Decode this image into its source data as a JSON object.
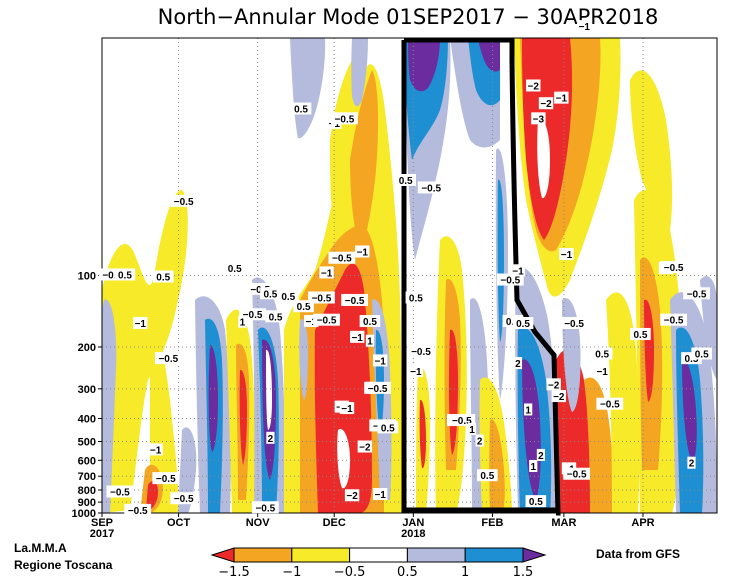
{
  "title": "North−Annular Mode 01SEP2017 − 30APR2018",
  "footer": {
    "left_line1": "La.M.M.A",
    "left_line2": "Regione Toscana",
    "right": "Data from GFS"
  },
  "chart_data": {
    "type": "heatmap",
    "x_axis": {
      "start": "2017-09-01",
      "end": "2018-04-30",
      "ticks": [
        {
          "date": "2017-09-01",
          "label": "SEP",
          "sub": "2017"
        },
        {
          "date": "2017-10-01",
          "label": "OCT",
          "sub": ""
        },
        {
          "date": "2017-11-01",
          "label": "NOV",
          "sub": ""
        },
        {
          "date": "2017-12-01",
          "label": "DEC",
          "sub": ""
        },
        {
          "date": "2018-01-01",
          "label": "JAN",
          "sub": "2018"
        },
        {
          "date": "2018-02-01",
          "label": "FEB",
          "sub": ""
        },
        {
          "date": "2018-03-01",
          "label": "MAR",
          "sub": ""
        },
        {
          "date": "2018-04-01",
          "label": "APR",
          "sub": ""
        }
      ]
    },
    "y_axis": {
      "scale": "log",
      "inverted": true,
      "range": [
        1000,
        10
      ],
      "tick_labels": [
        "100",
        "200",
        "300",
        "400",
        "500",
        "600",
        "700",
        "800",
        "900",
        "1000"
      ],
      "tick_values": [
        100,
        200,
        300,
        400,
        500,
        600,
        700,
        800,
        900,
        1000
      ]
    },
    "grid": "dotted",
    "colorbar": {
      "labels": [
        "−1.5",
        "−1",
        "−0.5",
        "0.5",
        "1",
        "1.5"
      ],
      "colors": [
        "#ec2a2a",
        "#f4a623",
        "#f6ea29",
        "#ffffff",
        "#b4bbdd",
        "#1e8fd2",
        "#6a2c9e"
      ]
    },
    "highlight_box_dates": [
      "2017-12-28",
      "2018-03-05"
    ],
    "contour_labels": [
      {
        "t": "2017-09-05",
        "p": 100,
        "text": "−0.5"
      },
      {
        "t": "2017-09-10",
        "p": 100,
        "text": "0.5"
      },
      {
        "t": "2017-09-25",
        "p": 102,
        "text": "0.5"
      },
      {
        "t": "2017-10-03",
        "p": 49,
        "text": "−0.5"
      },
      {
        "t": "2017-09-16",
        "p": 160,
        "text": "−1"
      },
      {
        "t": "2017-09-27",
        "p": 225,
        "text": "−0.5"
      },
      {
        "t": "2017-09-22",
        "p": 545,
        "text": "−1"
      },
      {
        "t": "2017-09-26",
        "p": 720,
        "text": "−0.5"
      },
      {
        "t": "2017-09-08",
        "p": 820,
        "text": "−0.5"
      },
      {
        "t": "2017-09-15",
        "p": 980,
        "text": "−0.5"
      },
      {
        "t": "2017-10-03",
        "p": 875,
        "text": "−0.5"
      },
      {
        "t": "2017-10-23",
        "p": 94,
        "text": "0.5"
      },
      {
        "t": "2017-11-02",
        "p": 115,
        "text": "−0.5"
      },
      {
        "t": "2017-11-06",
        "p": 120,
        "text": "0.5"
      },
      {
        "t": "2017-10-30",
        "p": 147,
        "text": "−0.5"
      },
      {
        "t": "2017-11-08",
        "p": 150,
        "text": "0.5"
      },
      {
        "t": "2017-10-26",
        "p": 158,
        "text": "1"
      },
      {
        "t": "2017-11-13",
        "p": 123,
        "text": "0.5"
      },
      {
        "t": "2017-11-19",
        "p": 136,
        "text": "0.5"
      },
      {
        "t": "2017-11-22",
        "p": 157,
        "text": "−1"
      },
      {
        "t": "2017-11-26",
        "p": 125,
        "text": "−0.5"
      },
      {
        "t": "2017-11-28",
        "p": 98,
        "text": "−1"
      },
      {
        "t": "2017-11-28",
        "p": 155,
        "text": "−0.5"
      },
      {
        "t": "2017-11-06",
        "p": 487,
        "text": "2"
      },
      {
        "t": "2017-11-04",
        "p": 955,
        "text": "−0.5"
      },
      {
        "t": "2017-11-18",
        "p": 20,
        "text": "0.5"
      },
      {
        "t": "2017-12-01",
        "p": 23,
        "text": "−1"
      },
      {
        "t": "2017-12-05",
        "p": 22,
        "text": "−0.5"
      },
      {
        "t": "2017-12-04",
        "p": 85,
        "text": "−0.5"
      },
      {
        "t": "2017-12-12",
        "p": 80,
        "text": "−1"
      },
      {
        "t": "2017-12-09",
        "p": 128,
        "text": "−0.5"
      },
      {
        "t": "2017-12-10",
        "p": 183,
        "text": "−1"
      },
      {
        "t": "2017-12-15",
        "p": 157,
        "text": "0.5"
      },
      {
        "t": "2017-12-15",
        "p": 190,
        "text": "1"
      },
      {
        "t": "2017-12-04",
        "p": 360,
        "text": "−2"
      },
      {
        "t": "2017-12-06",
        "p": 365,
        "text": "−1"
      },
      {
        "t": "2017-12-13",
        "p": 530,
        "text": "−2"
      },
      {
        "t": "2017-12-15",
        "p": 300,
        "text": "2"
      },
      {
        "t": "2017-12-18",
        "p": 300,
        "text": "−0.5"
      },
      {
        "t": "2017-12-19",
        "p": 230,
        "text": "−1"
      },
      {
        "t": "2017-12-20",
        "p": 432,
        "text": "−0.5"
      },
      {
        "t": "2017-12-22",
        "p": 440,
        "text": "0.5"
      },
      {
        "t": "2017-12-08",
        "p": 850,
        "text": "−2"
      },
      {
        "t": "2017-12-19",
        "p": 840,
        "text": "−1"
      },
      {
        "t": "2017-12-29",
        "p": 40,
        "text": "0.5"
      },
      {
        "t": "2018-01-08",
        "p": 43,
        "text": "−0.5"
      },
      {
        "t": "2018-01-02",
        "p": 125,
        "text": "0.5"
      },
      {
        "t": "2018-01-04",
        "p": 210,
        "text": "−0.5"
      },
      {
        "t": "2018-01-02",
        "p": 255,
        "text": "−1"
      },
      {
        "t": "2018-01-17",
        "p": 410,
        "text": "−1"
      },
      {
        "t": "2018-01-20",
        "p": 410,
        "text": "−0.5"
      },
      {
        "t": "2018-01-24",
        "p": 447,
        "text": "1"
      },
      {
        "t": "2018-01-27",
        "p": 500,
        "text": "2"
      },
      {
        "t": "2018-01-30",
        "p": 700,
        "text": "0.5"
      },
      {
        "t": "2018-02-08",
        "p": 105,
        "text": "−0.5"
      },
      {
        "t": "2018-02-11",
        "p": 96,
        "text": "−1"
      },
      {
        "t": "2018-02-09",
        "p": 157,
        "text": "0.5"
      },
      {
        "t": "2018-02-13",
        "p": 160,
        "text": "0.5"
      },
      {
        "t": "2018-02-11",
        "p": 236,
        "text": "2"
      },
      {
        "t": "2018-02-15",
        "p": 370,
        "text": "1"
      },
      {
        "t": "2018-02-17",
        "p": 640,
        "text": "1"
      },
      {
        "t": "2018-02-20",
        "p": 575,
        "text": "2"
      },
      {
        "t": "2018-02-18",
        "p": 900,
        "text": "0.5"
      },
      {
        "t": "2018-02-17",
        "p": 16,
        "text": "−2"
      },
      {
        "t": "2018-02-22",
        "p": 19,
        "text": "−2"
      },
      {
        "t": "2018-02-19",
        "p": 22,
        "text": "−3"
      },
      {
        "t": "2018-02-28",
        "p": 18,
        "text": "−1"
      },
      {
        "t": "2018-03-09",
        "p": 9,
        "text": "−1"
      },
      {
        "t": "2018-03-02",
        "p": 82,
        "text": "−1"
      },
      {
        "t": "2018-03-05",
        "p": 160,
        "text": "−0.5"
      },
      {
        "t": "2018-03-16",
        "p": 255,
        "text": "−1"
      },
      {
        "t": "2018-02-25",
        "p": 290,
        "text": "−2"
      },
      {
        "t": "2018-02-27",
        "p": 325,
        "text": "−2"
      },
      {
        "t": "2018-03-19",
        "p": 350,
        "text": "−0.5"
      },
      {
        "t": "2018-03-16",
        "p": 215,
        "text": "0.5"
      },
      {
        "t": "2018-03-03",
        "p": 655,
        "text": "−1"
      },
      {
        "t": "2018-03-06",
        "p": 690,
        "text": "−0.5"
      },
      {
        "t": "2018-03-31",
        "p": 178,
        "text": "0.5"
      },
      {
        "t": "2018-04-10",
        "p": 94,
        "text": "−1"
      },
      {
        "t": "2018-04-13",
        "p": 93,
        "text": "−0.5"
      },
      {
        "t": "2018-04-22",
        "p": 120,
        "text": "−0.5"
      },
      {
        "t": "2018-04-13",
        "p": 155,
        "text": "−0.5"
      },
      {
        "t": "2018-04-20",
        "p": 225,
        "text": "0.5"
      },
      {
        "t": "2018-04-24",
        "p": 215,
        "text": "0.5"
      },
      {
        "t": "2018-04-20",
        "p": 620,
        "text": "2"
      }
    ]
  }
}
